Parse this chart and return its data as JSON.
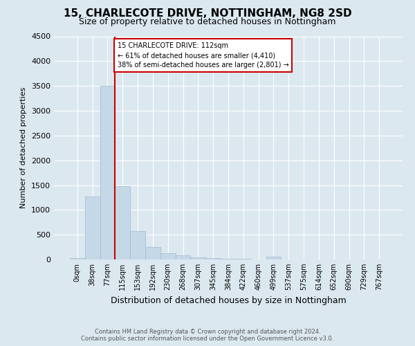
{
  "title1": "15, CHARLECOTE DRIVE, NOTTINGHAM, NG8 2SD",
  "title2": "Size of property relative to detached houses in Nottingham",
  "xlabel": "Distribution of detached houses by size in Nottingham",
  "ylabel": "Number of detached properties",
  "categories": [
    "0sqm",
    "38sqm",
    "77sqm",
    "115sqm",
    "153sqm",
    "192sqm",
    "230sqm",
    "268sqm",
    "307sqm",
    "345sqm",
    "384sqm",
    "422sqm",
    "460sqm",
    "499sqm",
    "537sqm",
    "575sqm",
    "614sqm",
    "652sqm",
    "690sqm",
    "729sqm",
    "767sqm"
  ],
  "bar_values": [
    30,
    1270,
    3500,
    1480,
    575,
    250,
    120,
    80,
    45,
    30,
    20,
    15,
    5,
    50,
    5,
    0,
    0,
    0,
    0,
    0,
    0
  ],
  "bar_color": "#c5d8e8",
  "bar_edgecolor": "#a0b8cc",
  "annotation_text": "15 CHARLECOTE DRIVE: 112sqm\n← 61% of detached houses are smaller (4,410)\n38% of semi-detached houses are larger (2,801) →",
  "annotation_box_color": "#cc0000",
  "vline_color": "#cc0000",
  "ylim": [
    0,
    4500
  ],
  "yticks": [
    0,
    500,
    1000,
    1500,
    2000,
    2500,
    3000,
    3500,
    4000,
    4500
  ],
  "footer1": "Contains HM Land Registry data © Crown copyright and database right 2024.",
  "footer2": "Contains public sector information licensed under the Open Government Licence v3.0.",
  "bg_color": "#dce8f0",
  "plot_bg_color": "#dce8f0",
  "grid_color": "#ffffff",
  "title1_fontsize": 11,
  "title2_fontsize": 9,
  "ylabel_fontsize": 8,
  "xlabel_fontsize": 9
}
